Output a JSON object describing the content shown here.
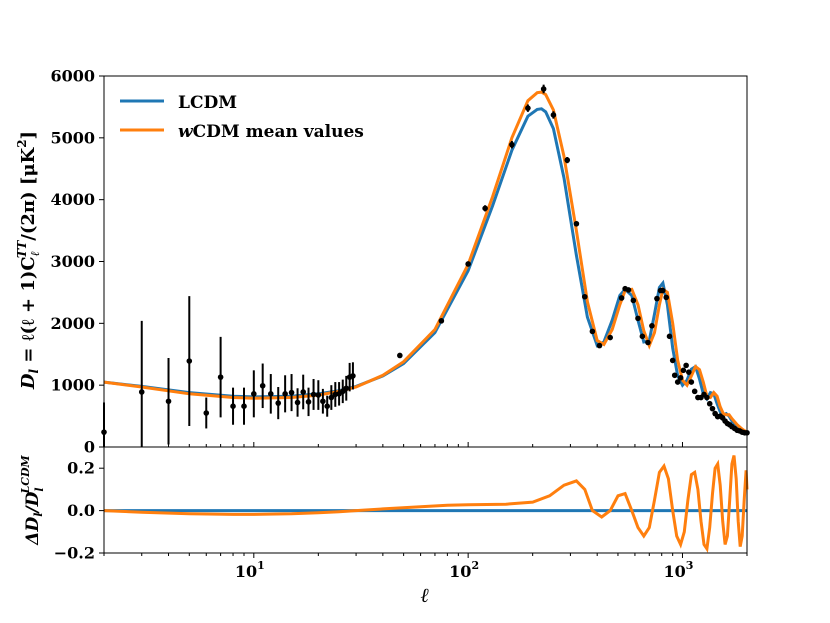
{
  "chart_data": [
    {
      "type": "line",
      "panel": "top",
      "xscale": "log",
      "xlim": [
        2,
        2000
      ],
      "ylim": [
        0,
        6000
      ],
      "xlabel": "ℓ",
      "ylabel": {
        "main": "D",
        "sub_l": "l",
        "eq": " = ℓ(ℓ + 1)C",
        "sub_ell": "ℓ",
        "sup_TT": "TT",
        "tail": "/(2π) [μK",
        "sup_2": "2",
        "close": "]"
      },
      "yticks": [
        {
          "value": 0,
          "label": "0"
        },
        {
          "value": 1000,
          "label": "1000"
        },
        {
          "value": 2000,
          "label": "2000"
        },
        {
          "value": 3000,
          "label": "3000"
        },
        {
          "value": 4000,
          "label": "4000"
        },
        {
          "value": 5000,
          "label": "5000"
        },
        {
          "value": 6000,
          "label": "6000"
        }
      ],
      "legend": {
        "position": "top-left",
        "entries": [
          {
            "series": 0,
            "prefix": "",
            "prefix_italic": false,
            "text": "LCDM"
          },
          {
            "series": 1,
            "prefix": "w",
            "prefix_italic": true,
            "text": "CDM mean values"
          }
        ]
      },
      "series": [
        {
          "name": "LCDM",
          "color": "#1f77b4",
          "x": [
            2,
            3,
            5,
            8,
            10,
            15,
            20,
            25,
            30,
            40,
            50,
            70,
            100,
            130,
            160,
            190,
            210,
            220,
            230,
            250,
            280,
            320,
            360,
            400,
            430,
            470,
            510,
            540,
            580,
            620,
            660,
            700,
            740,
            780,
            810,
            850,
            900,
            950,
            1000,
            1050,
            1100,
            1150,
            1200,
            1250,
            1300,
            1350,
            1400,
            1450,
            1500,
            1550,
            1600,
            1650,
            1700,
            1800,
            1900,
            2000
          ],
          "y": [
            1050,
            980,
            880,
            820,
            810,
            820,
            860,
            910,
            980,
            1150,
            1350,
            1850,
            2850,
            3900,
            4800,
            5350,
            5460,
            5470,
            5420,
            5150,
            4350,
            3100,
            2100,
            1640,
            1700,
            2050,
            2450,
            2550,
            2450,
            2050,
            1700,
            1720,
            2150,
            2580,
            2650,
            2300,
            1600,
            1150,
            1000,
            1080,
            1260,
            1300,
            1100,
            860,
            780,
            880,
            860,
            700,
            570,
            520,
            540,
            500,
            420,
            330,
            270,
            230
          ]
        },
        {
          "name": "wCDM mean values",
          "color": "#ff7f0e",
          "x": [
            2,
            3,
            5,
            8,
            10,
            15,
            20,
            25,
            30,
            40,
            50,
            70,
            100,
            130,
            160,
            190,
            210,
            220,
            230,
            250,
            280,
            320,
            360,
            400,
            430,
            470,
            510,
            540,
            580,
            620,
            660,
            700,
            740,
            780,
            810,
            850,
            900,
            950,
            1000,
            1050,
            1100,
            1150,
            1200,
            1250,
            1300,
            1350,
            1400,
            1450,
            1500,
            1550,
            1600,
            1650,
            1700,
            1800,
            1900,
            2000
          ],
          "y": [
            1050,
            970,
            860,
            800,
            790,
            800,
            840,
            900,
            970,
            1160,
            1380,
            1900,
            2950,
            4050,
            5000,
            5600,
            5730,
            5740,
            5700,
            5450,
            4700,
            3500,
            2350,
            1720,
            1660,
            1900,
            2300,
            2530,
            2550,
            2300,
            1880,
            1640,
            1850,
            2300,
            2550,
            2500,
            2000,
            1400,
            1080,
            1000,
            1150,
            1300,
            1250,
            1050,
            820,
            800,
            880,
            820,
            650,
            540,
            520,
            520,
            460,
            360,
            290,
            240
          ]
        }
      ],
      "points": {
        "color": "#000000",
        "x": [
          2,
          3,
          4,
          5,
          6,
          7,
          8,
          9,
          10,
          11,
          12,
          13,
          14,
          15,
          16,
          17,
          18,
          19,
          20,
          21,
          22,
          23,
          24,
          25,
          26,
          27,
          28,
          29,
          48,
          75,
          100,
          120,
          160,
          190,
          225,
          250,
          290,
          320,
          350,
          380,
          410,
          460,
          520,
          540,
          560,
          590,
          620,
          650,
          690,
          720,
          760,
          790,
          810,
          840,
          870,
          900,
          920,
          950,
          980,
          1010,
          1040,
          1070,
          1100,
          1140,
          1180,
          1220,
          1260,
          1300,
          1340,
          1380,
          1420,
          1460,
          1500,
          1540,
          1580,
          1620,
          1660,
          1700,
          1750,
          1800,
          1850,
          1900,
          1950,
          2000
        ],
        "y": [
          240,
          890,
          740,
          1390,
          550,
          1130,
          660,
          660,
          860,
          990,
          860,
          710,
          860,
          880,
          720,
          890,
          730,
          850,
          840,
          740,
          660,
          800,
          850,
          860,
          900,
          950,
          1130,
          1150,
          1480,
          2040,
          2960,
          3860,
          4890,
          5480,
          5790,
          5370,
          4640,
          3610,
          2430,
          1870,
          1640,
          1770,
          2410,
          2560,
          2540,
          2370,
          2080,
          1790,
          1690,
          1960,
          2400,
          2530,
          2530,
          2420,
          1790,
          1400,
          1160,
          1050,
          1120,
          1240,
          1320,
          1210,
          1050,
          900,
          800,
          800,
          850,
          800,
          700,
          620,
          540,
          490,
          500,
          470,
          420,
          380,
          360,
          330,
          300,
          270,
          260,
          240,
          230,
          230
        ],
        "err": [
          480,
          1150,
          700,
          1050,
          250,
          650,
          300,
          300,
          380,
          360,
          320,
          260,
          300,
          300,
          230,
          280,
          230,
          250,
          240,
          200,
          170,
          200,
          200,
          190,
          190,
          200,
          230,
          220,
          30,
          30,
          40,
          50,
          60,
          60,
          70,
          60,
          50,
          40,
          30,
          30,
          30,
          30,
          40,
          40,
          40,
          40,
          40,
          35,
          35,
          35,
          40,
          40,
          40,
          40,
          35,
          30,
          30,
          30,
          30,
          30,
          30,
          30,
          30,
          30,
          25,
          25,
          25,
          25,
          25,
          25,
          20,
          20,
          20,
          20,
          20,
          20,
          20,
          20,
          20,
          20,
          20,
          20,
          20,
          20
        ]
      }
    },
    {
      "type": "line",
      "panel": "bottom",
      "xscale": "log",
      "xlim": [
        2,
        2000
      ],
      "ylim": [
        -0.2,
        0.3
      ],
      "xlabel": "ℓ",
      "ylabel": {
        "main": "ΔD",
        "sub_l": "l",
        "slash": "/D",
        "sub_l2": "l",
        "sup": "LCDM"
      },
      "yticks": [
        {
          "value": -0.2,
          "label": "−0.2"
        },
        {
          "value": 0.0,
          "label": "0.0"
        },
        {
          "value": 0.2,
          "label": "0.2"
        }
      ],
      "xticks": [
        {
          "value": 10,
          "base": "10",
          "exp": "1"
        },
        {
          "value": 100,
          "base": "10",
          "exp": "2"
        },
        {
          "value": 1000,
          "base": "10",
          "exp": "3"
        }
      ],
      "series": [
        {
          "name": "LCDM",
          "color": "#1f77b4",
          "x": [
            2,
            2000
          ],
          "y": [
            0,
            0
          ]
        },
        {
          "name": "wCDM mean values",
          "color": "#ff7f0e",
          "x": [
            2,
            3,
            5,
            8,
            10,
            15,
            20,
            25,
            30,
            40,
            60,
            80,
            100,
            150,
            200,
            240,
            280,
            320,
            350,
            380,
            420,
            460,
            500,
            540,
            580,
            620,
            660,
            700,
            740,
            780,
            820,
            860,
            900,
            940,
            980,
            1020,
            1060,
            1100,
            1140,
            1180,
            1220,
            1260,
            1300,
            1340,
            1380,
            1420,
            1460,
            1500,
            1540,
            1580,
            1620,
            1660,
            1700,
            1740,
            1780,
            1820,
            1860,
            1900,
            1940,
            1980,
            2000
          ],
          "y": [
            0.0,
            -0.008,
            -0.015,
            -0.018,
            -0.018,
            -0.015,
            -0.01,
            -0.005,
            0.0,
            0.008,
            0.018,
            0.025,
            0.028,
            0.03,
            0.04,
            0.07,
            0.12,
            0.14,
            0.1,
            0.0,
            -0.03,
            0.0,
            0.07,
            0.08,
            0.0,
            -0.08,
            -0.12,
            -0.08,
            0.05,
            0.18,
            0.21,
            0.15,
            0.0,
            -0.12,
            -0.16,
            -0.1,
            0.05,
            0.17,
            0.18,
            0.1,
            -0.05,
            -0.16,
            -0.18,
            -0.08,
            0.08,
            0.2,
            0.22,
            0.12,
            -0.05,
            -0.16,
            -0.12,
            0.05,
            0.22,
            0.26,
            0.15,
            -0.05,
            -0.17,
            -0.12,
            0.05,
            0.19,
            0.1
          ]
        }
      ]
    }
  ]
}
